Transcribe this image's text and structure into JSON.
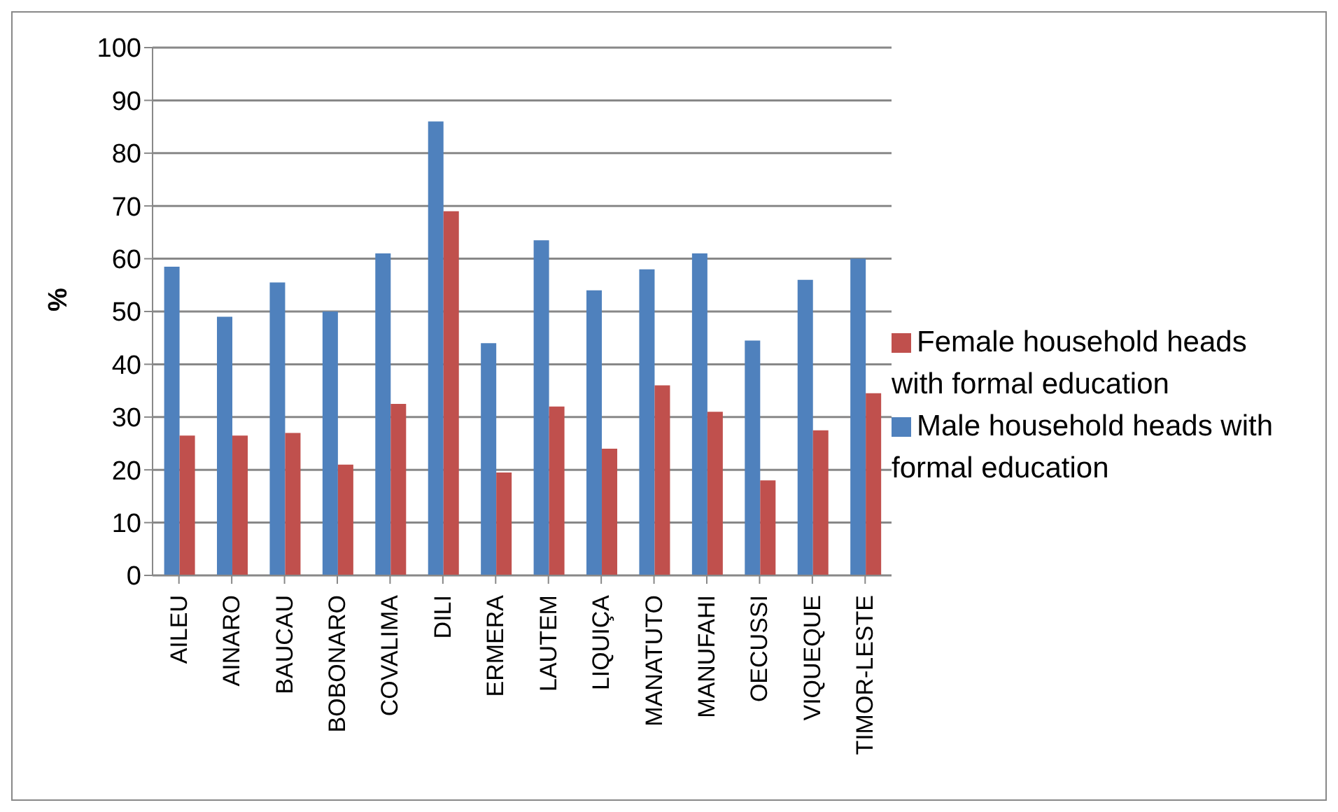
{
  "chart_data": {
    "type": "bar",
    "ylabel": "%",
    "categories": [
      "AILEU",
      "AINARO",
      "BAUCAU",
      "BOBONARO",
      "COVALIMA",
      "DILI",
      "ERMERA",
      "LAUTEM",
      "LIQUIÇA",
      "MANATUTO",
      "MANUFAHI",
      "OECUSSI",
      "VIQUEQUE",
      "TIMOR-LESTE"
    ],
    "series": [
      {
        "name": "Male household heads with formal education",
        "color": "#4f81bd",
        "values": [
          58.5,
          49,
          55.5,
          50,
          61,
          86,
          44,
          63.5,
          54,
          58,
          61,
          44.5,
          56,
          60
        ]
      },
      {
        "name": "Female household heads with formal education",
        "color": "#c0504d",
        "values": [
          26.5,
          26.5,
          27,
          21,
          32.5,
          69,
          19.5,
          32,
          24,
          36,
          31,
          18,
          27.5,
          34.5
        ]
      }
    ],
    "ylim": [
      0,
      100
    ],
    "yticks": [
      0,
      10,
      20,
      30,
      40,
      50,
      60,
      70,
      80,
      90,
      100
    ],
    "grid": "y",
    "legend": "right"
  }
}
